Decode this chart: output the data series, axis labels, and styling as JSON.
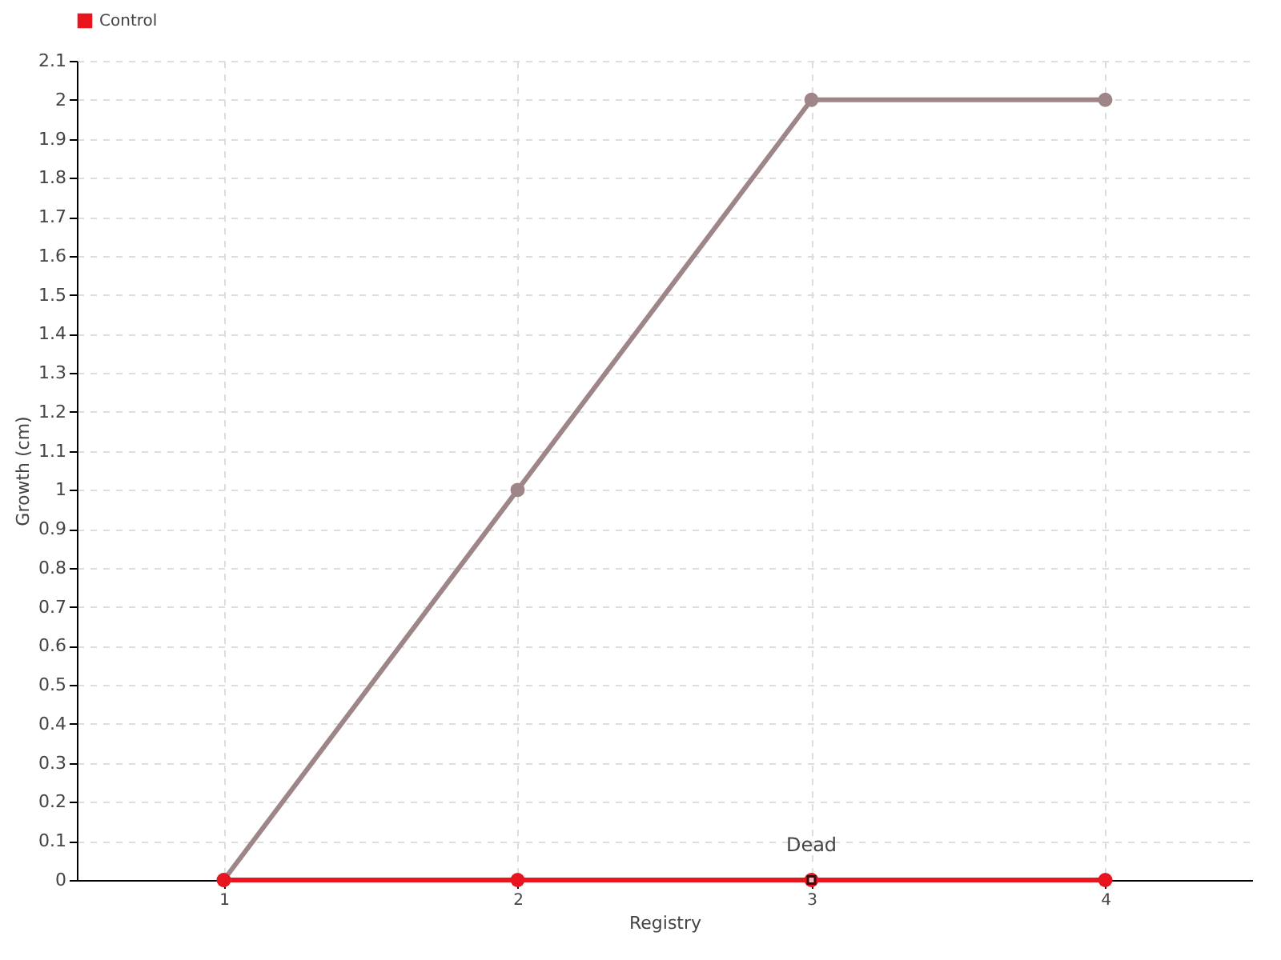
{
  "chart_data": {
    "type": "line",
    "xlabel": "Registry",
    "ylabel": "Growth (cm)",
    "categories": [
      "1",
      "2",
      "3",
      "4"
    ],
    "series": [
      {
        "color": "#9e8587",
        "values": [
          0,
          1,
          2,
          2
        ]
      },
      {
        "name": "Control",
        "color": "#e8141e",
        "values": [
          0,
          0,
          0,
          0
        ]
      }
    ],
    "ylim": [
      0,
      2.1
    ],
    "yticks": [
      0,
      0.1,
      0.2,
      0.3,
      0.4,
      0.5,
      0.6,
      0.7,
      0.8,
      0.9,
      1,
      1.1,
      1.2,
      1.3,
      1.4,
      1.5,
      1.6,
      1.7,
      1.8,
      1.9,
      2,
      2.1
    ],
    "grid": true,
    "legend": "top left",
    "marker": "circle",
    "line_style": "solid",
    "annotations": [
      {
        "text": "Dead",
        "x": "3",
        "y": 0
      }
    ]
  }
}
